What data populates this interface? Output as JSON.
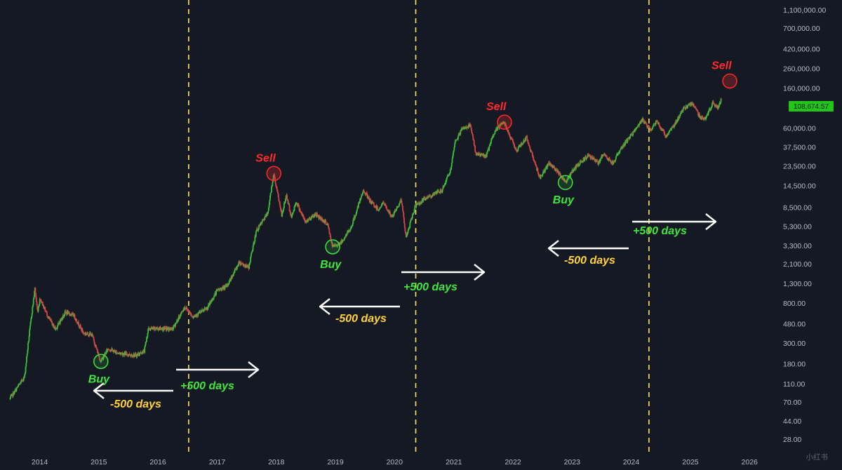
{
  "chart_data": {
    "type": "candlestick",
    "y_scale": "log",
    "ylim": [
      22,
      1400000
    ],
    "xlim": [
      "2013-05-01",
      "2026-07-01"
    ],
    "current_price_label": "108,674.57",
    "current_price": 108674.57,
    "y_tick_labels": [
      "1,100,000.00",
      "700,000.00",
      "420,000.00",
      "260,000.00",
      "160,000.00",
      "60,000.00",
      "37,500.00",
      "23,500.00",
      "14,500.00",
      "8,500.00",
      "5,300.00",
      "3,300.00",
      "2,100.00",
      "1,300.00",
      "800.00",
      "480.00",
      "300.00",
      "180.00",
      "110.00",
      "70.00",
      "44.00",
      "28.00"
    ],
    "y_tick_values": [
      1100000,
      700000,
      420000,
      260000,
      160000,
      60000,
      37500,
      23500,
      14500,
      8500,
      5300,
      3300,
      2100,
      1300,
      800,
      480,
      300,
      180,
      110,
      70,
      44,
      28
    ],
    "x_tick_labels": [
      "2014",
      "2015",
      "2016",
      "2017",
      "2018",
      "2019",
      "2020",
      "2021",
      "2022",
      "2023",
      "2024",
      "2025",
      "2026"
    ],
    "x_tick_dates": [
      "2014-01-01",
      "2015-01-01",
      "2016-01-01",
      "2017-01-01",
      "2018-01-01",
      "2019-01-01",
      "2020-01-01",
      "2021-01-01",
      "2022-01-01",
      "2023-01-01",
      "2024-01-01",
      "2025-01-01",
      "2026-01-01"
    ],
    "price_path": [
      [
        "2013-07-01",
        75
      ],
      [
        "2013-10-01",
        130
      ],
      [
        "2013-11-01",
        400
      ],
      [
        "2013-12-04",
        1150
      ],
      [
        "2013-12-20",
        650
      ],
      [
        "2014-01-05",
        900
      ],
      [
        "2014-02-25",
        560
      ],
      [
        "2014-04-10",
        420
      ],
      [
        "2014-06-10",
        640
      ],
      [
        "2014-08-01",
        590
      ],
      [
        "2014-10-01",
        380
      ],
      [
        "2014-11-20",
        370
      ],
      [
        "2015-01-14",
        190
      ],
      [
        "2015-03-01",
        260
      ],
      [
        "2015-05-01",
        235
      ],
      [
        "2015-08-20",
        220
      ],
      [
        "2015-10-10",
        245
      ],
      [
        "2015-11-04",
        420
      ],
      [
        "2016-01-01",
        430
      ],
      [
        "2016-04-01",
        420
      ],
      [
        "2016-06-17",
        730
      ],
      [
        "2016-08-05",
        575
      ],
      [
        "2016-11-01",
        700
      ],
      [
        "2017-01-04",
        1100
      ],
      [
        "2017-03-01",
        1200
      ],
      [
        "2017-05-20",
        2200
      ],
      [
        "2017-07-15",
        1900
      ],
      [
        "2017-09-01",
        4700
      ],
      [
        "2017-11-10",
        7300
      ],
      [
        "2017-12-17",
        19500
      ],
      [
        "2018-02-06",
        6900
      ],
      [
        "2018-03-05",
        11500
      ],
      [
        "2018-04-06",
        6600
      ],
      [
        "2018-05-05",
        9800
      ],
      [
        "2018-06-30",
        5900
      ],
      [
        "2018-09-01",
        7200
      ],
      [
        "2018-11-15",
        5600
      ],
      [
        "2018-12-15",
        3200
      ],
      [
        "2019-02-10",
        3600
      ],
      [
        "2019-04-10",
        5200
      ],
      [
        "2019-06-26",
        13000
      ],
      [
        "2019-08-01",
        10000
      ],
      [
        "2019-09-25",
        8000
      ],
      [
        "2019-10-26",
        9500
      ],
      [
        "2019-12-17",
        6600
      ],
      [
        "2020-02-14",
        10300
      ],
      [
        "2020-03-13",
        4000
      ],
      [
        "2020-05-10",
        8800
      ],
      [
        "2020-07-27",
        11000
      ],
      [
        "2020-10-21",
        12800
      ],
      [
        "2020-12-17",
        22000
      ],
      [
        "2021-01-08",
        41000
      ],
      [
        "2021-02-21",
        58000
      ],
      [
        "2021-04-14",
        64000
      ],
      [
        "2021-05-19",
        32000
      ],
      [
        "2021-07-20",
        29800
      ],
      [
        "2021-09-07",
        52000
      ],
      [
        "2021-10-20",
        66000
      ],
      [
        "2021-11-10",
        69000
      ],
      [
        "2022-01-24",
        34000
      ],
      [
        "2022-03-28",
        47500
      ],
      [
        "2022-05-12",
        27000
      ],
      [
        "2022-06-18",
        17600
      ],
      [
        "2022-08-15",
        25000
      ],
      [
        "2022-10-25",
        19000
      ],
      [
        "2022-11-21",
        15600
      ],
      [
        "2023-01-20",
        22500
      ],
      [
        "2023-04-14",
        31000
      ],
      [
        "2023-06-15",
        25000
      ],
      [
        "2023-07-14",
        31500
      ],
      [
        "2023-09-11",
        25000
      ],
      [
        "2023-10-24",
        34500
      ],
      [
        "2023-12-08",
        44000
      ],
      [
        "2024-03-14",
        73000
      ],
      [
        "2024-05-01",
        57000
      ],
      [
        "2024-06-07",
        71000
      ],
      [
        "2024-08-05",
        49000
      ],
      [
        "2024-09-27",
        66000
      ],
      [
        "2024-11-12",
        90000
      ],
      [
        "2024-12-17",
        106000
      ],
      [
        "2025-01-21",
        108000
      ],
      [
        "2025-02-28",
        79000
      ],
      [
        "2025-04-08",
        76000
      ],
      [
        "2025-05-22",
        111000
      ],
      [
        "2025-06-22",
        99000
      ],
      [
        "2025-07-10",
        118000
      ]
    ],
    "vertical_dashed_lines": [
      "2016-07-09",
      "2020-05-11",
      "2024-04-20"
    ],
    "markers": [
      {
        "type": "sell",
        "date": "2017-12-17",
        "price": 19500,
        "label": "Sell"
      },
      {
        "type": "buy",
        "date": "2015-01-14",
        "price": 190,
        "label": "Buy"
      },
      {
        "type": "buy",
        "date": "2018-12-15",
        "price": 3200,
        "label": "Buy"
      },
      {
        "type": "sell",
        "date": "2021-11-10",
        "price": 69000,
        "label": "Sell"
      },
      {
        "type": "buy",
        "date": "2022-11-21",
        "price": 15600,
        "label": "Buy"
      },
      {
        "type": "sell",
        "date": "2025-09-01",
        "price": 190000,
        "label": "Sell"
      }
    ],
    "day_labels": {
      "plus": "+500 days",
      "minus": "-500 days"
    },
    "colors": {
      "background": "#151924",
      "up": "#3cbf3c",
      "down": "#d64545",
      "dashed_line": "#ffe45c",
      "arrow": "#ffffff",
      "sell": "#ff2a2a",
      "buy": "#3de63d",
      "plus_label": "#3de63d",
      "minus_label": "#ffd23a",
      "price_badge": "#22c51a"
    }
  },
  "watermark": "小红书"
}
